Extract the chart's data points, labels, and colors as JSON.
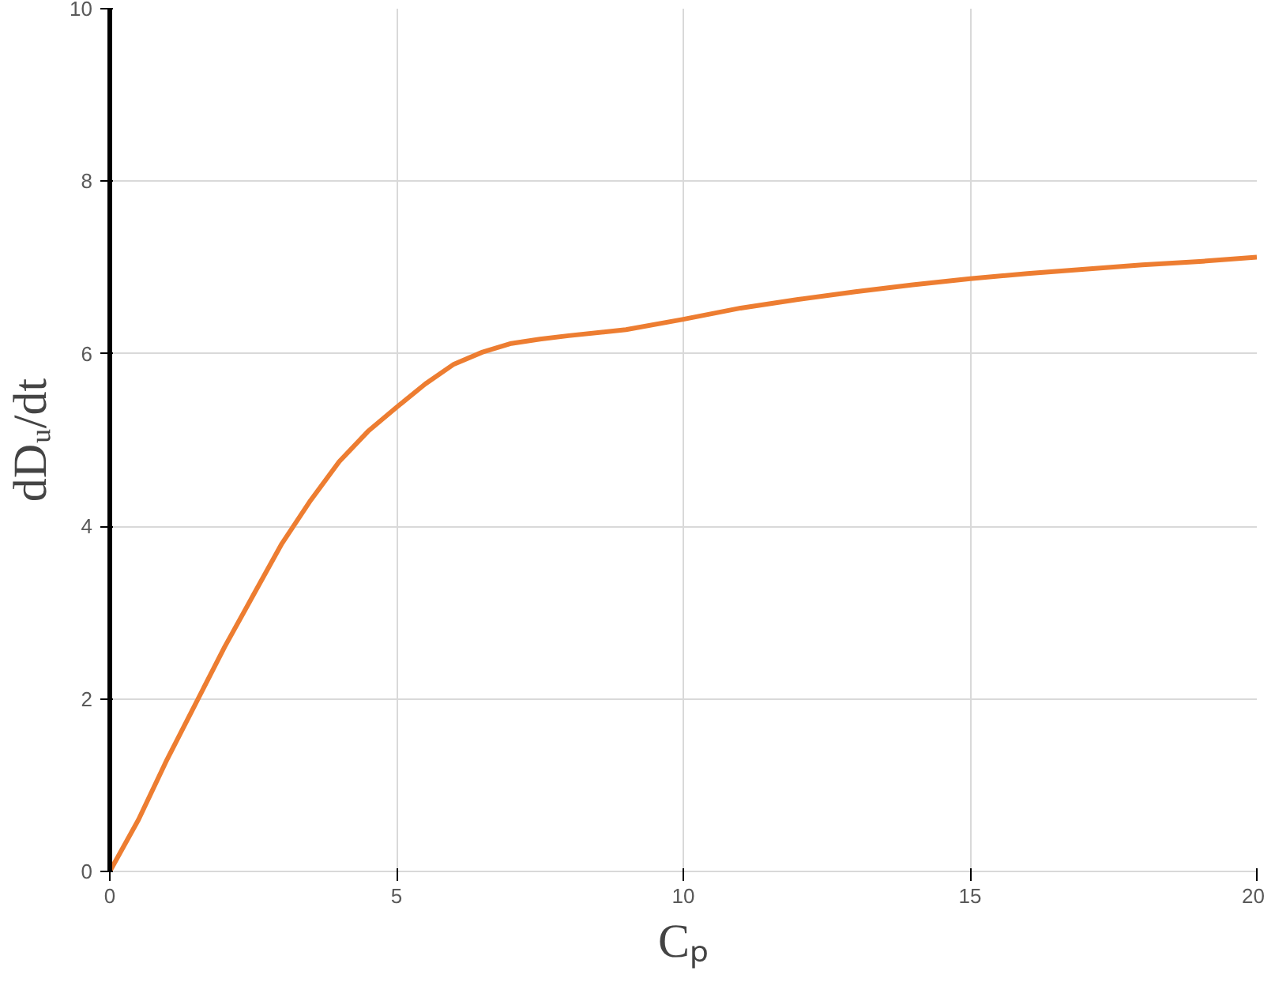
{
  "chart_data": {
    "type": "line",
    "xlabel": "Cₚ",
    "ylabel": "dDᵤ/dt",
    "x": [
      0,
      0.5,
      1,
      1.5,
      2,
      2.5,
      3,
      3.5,
      4,
      4.5,
      5,
      5.5,
      6,
      6.5,
      7,
      7.5,
      8,
      9,
      10,
      11,
      12,
      13,
      14,
      15,
      16,
      17,
      18,
      19,
      20
    ],
    "series": [
      {
        "color": "#ed7d31",
        "values": [
          0,
          0.6,
          1.3,
          1.95,
          2.6,
          3.2,
          3.8,
          4.3,
          4.75,
          5.1,
          5.38,
          5.65,
          5.88,
          6.02,
          6.12,
          6.17,
          6.21,
          6.28,
          6.4,
          6.53,
          6.63,
          6.72,
          6.8,
          6.87,
          6.93,
          6.98,
          7.03,
          7.07,
          7.12
        ]
      }
    ],
    "xlim": [
      0,
      20
    ],
    "ylim": [
      0,
      10
    ],
    "xticks": [
      0,
      5,
      10,
      15,
      20
    ],
    "yticks": [
      0,
      2,
      4,
      6,
      8,
      10
    ],
    "grid": true,
    "marker": "none",
    "line_style": "solid"
  }
}
